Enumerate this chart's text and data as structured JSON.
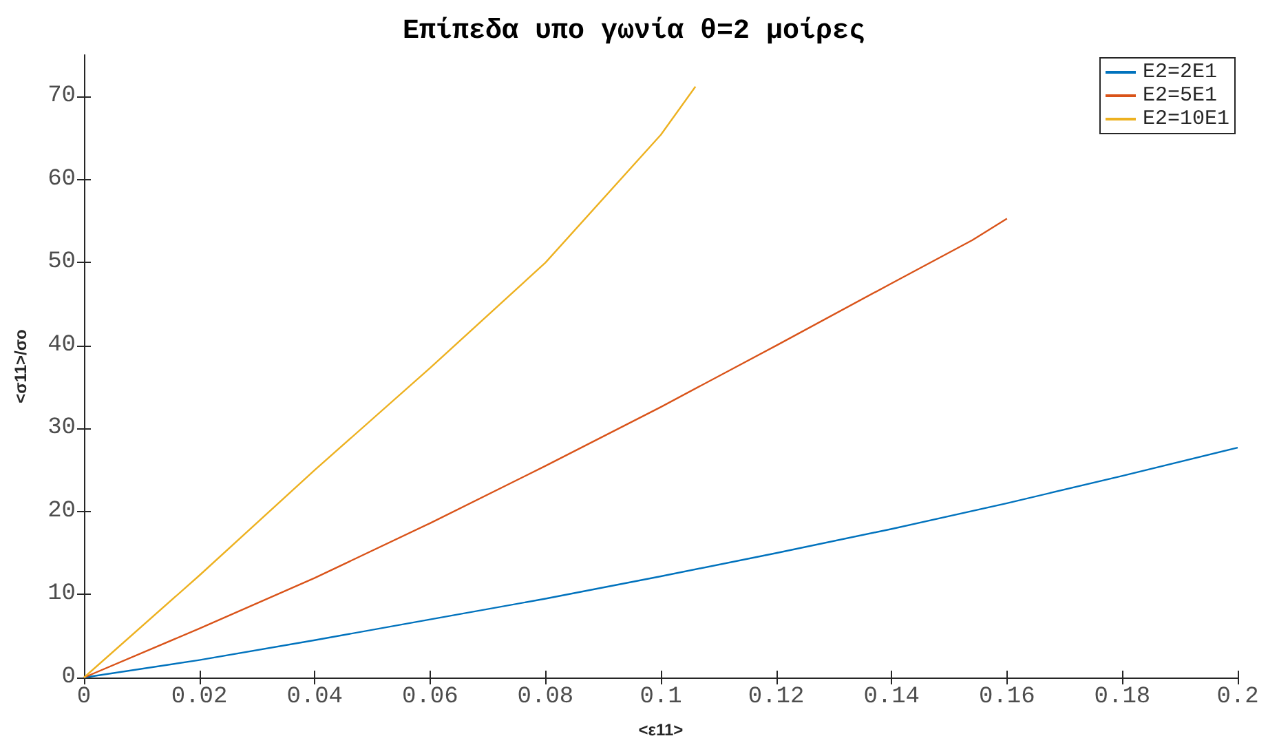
{
  "chart_data": {
    "type": "line",
    "title": "Επίπεδα υπο γωνία θ=2 μοίρες",
    "xlabel": "<ε11>",
    "ylabel": "<σ11>/σο",
    "x": [
      0,
      0.02,
      0.04,
      0.06,
      0.08,
      0.1,
      0.12,
      0.14,
      0.16,
      0.18,
      0.2
    ],
    "series": [
      {
        "name": "E2=2E1",
        "color": "#0072bd",
        "values": [
          0,
          2.1,
          4.5,
          7,
          9.5,
          12.2,
          15,
          17.9,
          21,
          24.3,
          27.7
        ]
      },
      {
        "name": "E2=5E1",
        "color": "#d95319",
        "x": [
          0,
          0.02,
          0.04,
          0.06,
          0.08,
          0.1,
          0.12,
          0.14,
          0.154,
          0.16
        ],
        "values": [
          0,
          5.9,
          12,
          18.6,
          25.5,
          32.6,
          40,
          47.5,
          52.7,
          55.3
        ]
      },
      {
        "name": "E2=10E1",
        "color": "#edb120",
        "x": [
          0,
          0.02,
          0.04,
          0.06,
          0.08,
          0.1,
          0.106
        ],
        "values": [
          0,
          12.3,
          25,
          37.3,
          50,
          65.4,
          71.2
        ]
      }
    ],
    "xlim": [
      0,
      0.2
    ],
    "xticks": [
      0,
      0.02,
      0.04,
      0.06,
      0.08,
      0.1,
      0.12,
      0.14,
      0.16,
      0.18,
      0.2
    ],
    "ylim": [
      0,
      75
    ],
    "yticks": [
      0,
      10,
      20,
      30,
      40,
      50,
      60,
      70
    ],
    "grid": false,
    "legend": "top right",
    "marker": "none",
    "line_style": "solid"
  }
}
